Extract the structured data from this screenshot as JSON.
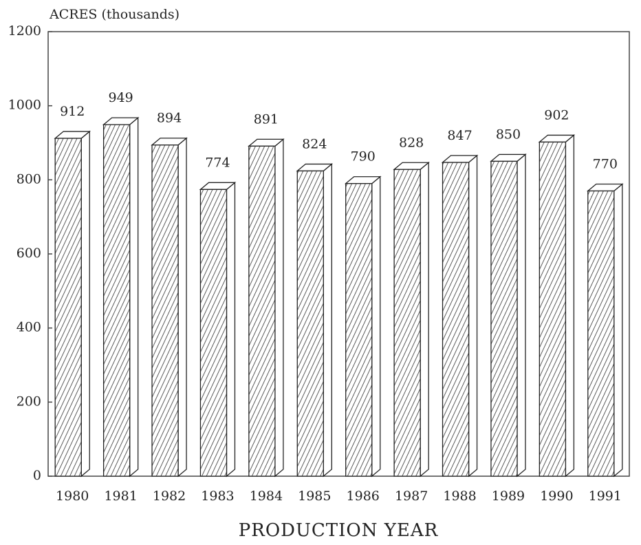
{
  "chart_data": {
    "type": "bar",
    "y_axis_label": "ACRES (thousands)",
    "x_axis_label": "PRODUCTION YEAR",
    "categories": [
      "1980",
      "1981",
      "1982",
      "1983",
      "1984",
      "1985",
      "1986",
      "1987",
      "1988",
      "1989",
      "1990",
      "1991"
    ],
    "values": [
      912,
      949,
      894,
      774,
      891,
      824,
      790,
      828,
      847,
      850,
      902,
      770
    ],
    "color": "#222222",
    "ylim": [
      0,
      1200
    ],
    "yticks": [
      0,
      200,
      400,
      600,
      800,
      1000,
      1200
    ],
    "grid": false
  }
}
